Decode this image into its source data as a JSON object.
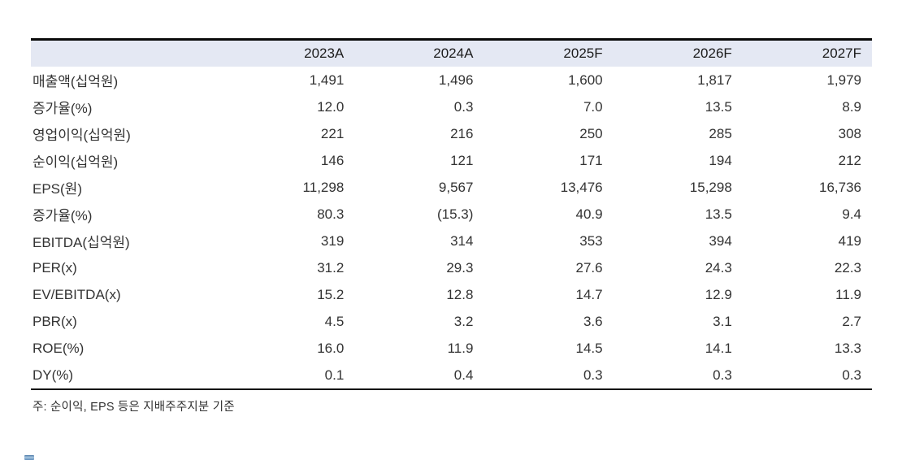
{
  "table": {
    "columns": [
      "",
      "2023A",
      "2024A",
      "2025F",
      "2026F",
      "2027F"
    ],
    "rows": [
      {
        "label": "매출액(십억원)",
        "values": [
          "1,491",
          "1,496",
          "1,600",
          "1,817",
          "1,979"
        ]
      },
      {
        "label": "증가율(%)",
        "values": [
          "12.0",
          "0.3",
          "7.0",
          "13.5",
          "8.9"
        ]
      },
      {
        "label": "영업이익(십억원)",
        "values": [
          "221",
          "216",
          "250",
          "285",
          "308"
        ]
      },
      {
        "label": "순이익(십억원)",
        "values": [
          "146",
          "121",
          "171",
          "194",
          "212"
        ]
      },
      {
        "label": "EPS(원)",
        "values": [
          "11,298",
          "9,567",
          "13,476",
          "15,298",
          "16,736"
        ]
      },
      {
        "label": "증가율(%)",
        "values": [
          "80.3",
          "(15.3)",
          "40.9",
          "13.5",
          "9.4"
        ]
      },
      {
        "label": "EBITDA(십억원)",
        "values": [
          "319",
          "314",
          "353",
          "394",
          "419"
        ]
      },
      {
        "label": "PER(x)",
        "values": [
          "31.2",
          "29.3",
          "27.6",
          "24.3",
          "22.3"
        ]
      },
      {
        "label": "EV/EBITDA(x)",
        "values": [
          "15.2",
          "12.8",
          "14.7",
          "12.9",
          "11.9"
        ]
      },
      {
        "label": "PBR(x)",
        "values": [
          "4.5",
          "3.2",
          "3.6",
          "3.1",
          "2.7"
        ]
      },
      {
        "label": "ROE(%)",
        "values": [
          "16.0",
          "11.9",
          "14.5",
          "14.1",
          "13.3"
        ]
      },
      {
        "label": "DY(%)",
        "values": [
          "0.1",
          "0.4",
          "0.3",
          "0.3",
          "0.3"
        ]
      }
    ]
  },
  "footnote": "주: 순이익, EPS 등은 지배주주지분 기준",
  "colors": {
    "header_bg": "#e4e8f3",
    "rule": "#0a0a0a",
    "logo_blue": "#5f8cba"
  }
}
